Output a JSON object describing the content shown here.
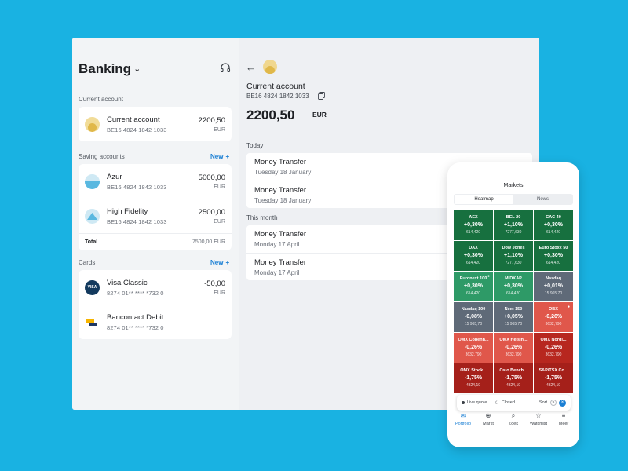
{
  "left": {
    "title": "Banking",
    "current_label": "Current account",
    "current_account": {
      "name": "Current account",
      "iban": "BE16 4824 1842 1033",
      "amount": "2200,50",
      "currency": "EUR"
    },
    "saving_label": "Saving accounts",
    "saving_new": "New",
    "saving_accounts": [
      {
        "name": "Azur",
        "iban": "BE16 4824 1842 1033",
        "amount": "5000,00",
        "currency": "EUR"
      },
      {
        "name": "High Fidelity",
        "iban": "BE16 4824 1842 1033",
        "amount": "2500,00",
        "currency": "EUR"
      }
    ],
    "total_label": "Total",
    "total_value": "7500,00 EUR",
    "cards_label": "Cards",
    "cards_new": "New",
    "cards": [
      {
        "name": "Visa Classic",
        "number": "8274 01** **** *732 0",
        "amount": "-50,00",
        "currency": "EUR",
        "logo": "VISA"
      },
      {
        "name": "Bancontact Debit",
        "number": "8274 01** **** *732 0"
      }
    ]
  },
  "detail": {
    "title": "Current account",
    "iban": "BE16 4824 1842 1033",
    "balance": "2200,50",
    "currency": "EUR",
    "today_label": "Today",
    "today": [
      {
        "title": "Money Transfer",
        "date": "Tuesday 18 January"
      },
      {
        "title": "Money Transfer",
        "date": "Tuesday 18 January"
      }
    ],
    "month_label": "This month",
    "month": [
      {
        "title": "Money Transfer",
        "date": "Monday 17 April"
      },
      {
        "title": "Money Transfer",
        "date": "Monday 17 April"
      }
    ]
  },
  "phone": {
    "title": "Markets",
    "tabs": [
      "Heatmap",
      "News"
    ],
    "tiles": [
      {
        "name": "AEX",
        "pct": "+0,30%",
        "val": "614,420",
        "color": "#17703f"
      },
      {
        "name": "BEL 20",
        "pct": "+1,10%",
        "val": "7277,630",
        "color": "#17703f"
      },
      {
        "name": "CAC 40",
        "pct": "+0,30%",
        "val": "614,420",
        "color": "#17703f"
      },
      {
        "name": "DAX",
        "pct": "+0,30%",
        "val": "614,420",
        "color": "#17703f"
      },
      {
        "name": "Dow Jones",
        "pct": "+1,10%",
        "val": "7277,630",
        "color": "#17703f"
      },
      {
        "name": "Euro Stoxx 50",
        "pct": "+0,30%",
        "val": "614,420",
        "color": "#17703f"
      },
      {
        "name": "Euronext 100",
        "pct": "+0,30%",
        "val": "614,420",
        "color": "#2e9a67"
      },
      {
        "name": "MIDKAP",
        "pct": "+0,30%",
        "val": "614,420",
        "color": "#2e9a67"
      },
      {
        "name": "Nasdaq",
        "pct": "+0,01%",
        "val": "15 965,70",
        "color": "#5f6a78"
      },
      {
        "name": "Nasdaq 100",
        "pct": "-0,08%",
        "val": "15 965,70",
        "color": "#5f6a78"
      },
      {
        "name": "Next 150",
        "pct": "+0,05%",
        "val": "15 965,70",
        "color": "#5f6a78"
      },
      {
        "name": "OBX",
        "pct": "-0,26%",
        "val": "3632,790",
        "color": "#e0574b"
      },
      {
        "name": "OMX Copenh...",
        "pct": "-0,26%",
        "val": "3632,790",
        "color": "#e0574b"
      },
      {
        "name": "OMX Helsin...",
        "pct": "-0,26%",
        "val": "3632,790",
        "color": "#e0574b"
      },
      {
        "name": "OMX Nordi...",
        "pct": "-0,26%",
        "val": "3632,790",
        "color": "#b7271f"
      },
      {
        "name": "OMX Stock...",
        "pct": "-1,75%",
        "val": "4324,19",
        "color": "#a5201a"
      },
      {
        "name": "Oslo Bench...",
        "pct": "-1,75%",
        "val": "4324,19",
        "color": "#a5201a"
      },
      {
        "name": "S&P/TSX Co...",
        "pct": "-1,75%",
        "val": "4324,19",
        "color": "#a5201a"
      }
    ],
    "legend": {
      "live": "Live quote",
      "closed": "Closed",
      "sort": "Sort"
    },
    "tabbar": [
      {
        "label": "Portfolio",
        "icon": "briefcase-icon",
        "glyph": "✉"
      },
      {
        "label": "Markt",
        "icon": "market-icon",
        "glyph": "⊕"
      },
      {
        "label": "Zoek",
        "icon": "search-icon",
        "glyph": "⌕"
      },
      {
        "label": "Watchlist",
        "icon": "star-icon",
        "glyph": "☆"
      },
      {
        "label": "Meer",
        "icon": "menu-icon",
        "glyph": "≡"
      }
    ]
  }
}
